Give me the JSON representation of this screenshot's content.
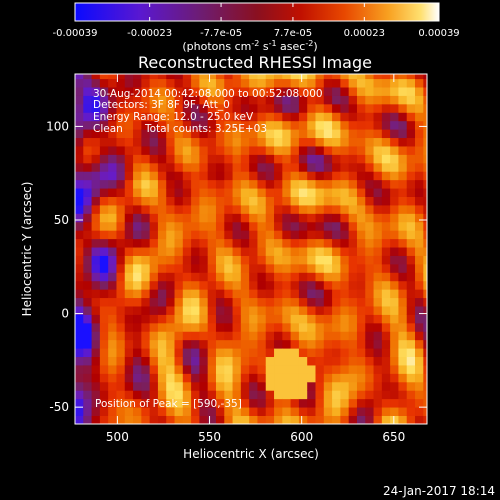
{
  "chart_data": {
    "type": "heatmap",
    "title": "Reconstructed RHESSI Image",
    "xlabel": "Heliocentric X (arcsec)",
    "ylabel": "Heliocentric Y (arcsec)",
    "xlim": [
      477,
      668
    ],
    "ylim": [
      -59,
      128
    ],
    "x_ticks": [
      500,
      550,
      600,
      650
    ],
    "y_ticks": [
      -50,
      0,
      50,
      100
    ],
    "colorbar": {
      "ticks": [
        "-0.00039",
        "-0.00023",
        "-7.7e-05",
        "7.7e-05",
        "0.00023",
        "0.00039"
      ],
      "range": [
        -0.00039,
        0.00039
      ],
      "unit_prefix": "(photons cm",
      "unit_exp1": "-2",
      "unit_mid": " s",
      "unit_exp2": "-1",
      "unit_mid2": " asec",
      "unit_exp3": "-2",
      "unit_suffix": ")"
    },
    "annotations": {
      "time_range": "30-Aug-2014 00:42:08.000 to 00:52:08.000",
      "detectors": "Detectors: 3F 8F 9F, Att_0",
      "energy": "Energy Range: 12.0 - 25.0 keV",
      "algorithm": "Clean",
      "total_counts": "Total counts: 3.25E+03",
      "peak": "Position of Peak = [590,-35]"
    },
    "peak_position": [
      590,
      -35
    ],
    "grid": false,
    "colormap": "blue-purple-red-orange-yellow-white"
  },
  "footer": {
    "date": "24-Jan-2017 18:14"
  },
  "colors": {
    "background": "#000000",
    "text": "#ffffff",
    "cmap_stops": [
      "#1a10ff",
      "#6a1cc4",
      "#7a2060",
      "#b00000",
      "#e83400",
      "#f07000",
      "#f8b020",
      "#ffe060",
      "#ffffff"
    ]
  }
}
